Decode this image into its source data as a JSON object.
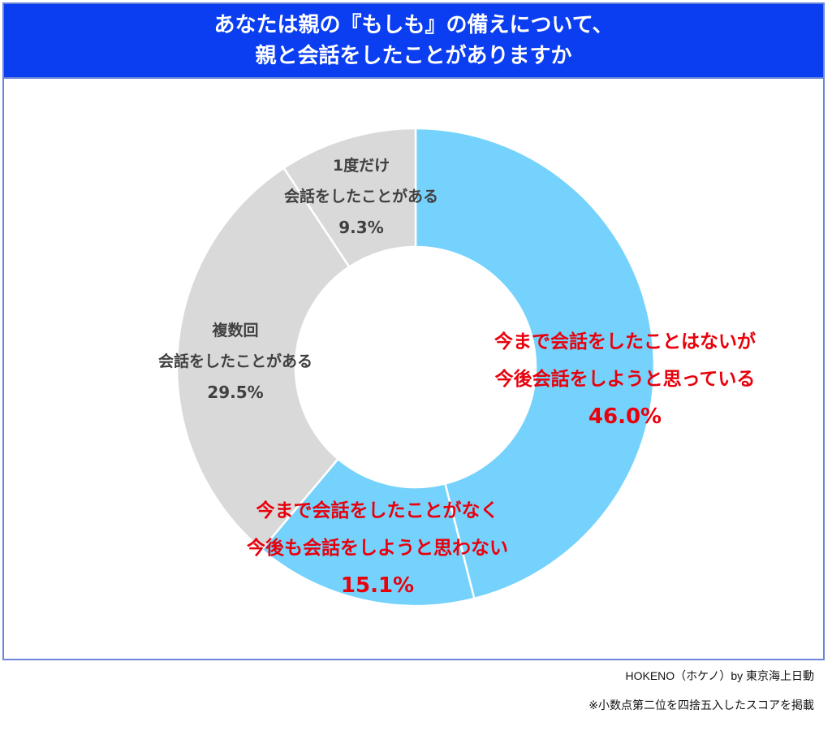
{
  "header": {
    "title_line1": "あなたは親の『もしも』の備えについて、",
    "title_line2": "親と会話をしたことがありますか"
  },
  "labels": {
    "plan_to": {
      "line1": "今まで会話をしたことはないが",
      "line2": "今後会話をしようと思っている",
      "pct": "46.0%"
    },
    "no_plan": {
      "line1": "今まで会話をしたことがなく",
      "line2": "今後も会話をしようと思わない",
      "pct": "15.1%"
    },
    "multiple": {
      "line1": "複数回",
      "line2": "会話をしたことがある",
      "pct": "29.5%"
    },
    "once": {
      "line1": "1度だけ",
      "line2": "会話をしたことがある",
      "pct": "9.3%"
    }
  },
  "footer": {
    "source": "HOKENO（ホケノ）by 東京海上日動",
    "note": "※小数点第二位を四捨五入したスコアを掲載"
  },
  "colors": {
    "title_bg": "#0a3ef0",
    "blue_segment": "#75d2fc",
    "gray_segment": "#d9d9d9",
    "red_text": "#e8000b",
    "gray_text": "#404040"
  },
  "chart_data": {
    "type": "pie",
    "variant": "donut",
    "title": "あなたは親の『もしも』の備えについて、親と会話をしたことがありますか",
    "start_angle": "12 o'clock",
    "direction": "clockwise",
    "categories": [
      "今まで会話をしたことはないが今後会話をしようと思っている",
      "今まで会話をしたことがなく今後も会話をしようと思わない",
      "複数回会話をしたことがある",
      "1度だけ会話をしたことがある"
    ],
    "values": [
      46.0,
      15.1,
      29.5,
      9.3
    ],
    "unit": "%",
    "segment_colors": [
      "#75d2fc",
      "#75d2fc",
      "#d9d9d9",
      "#d9d9d9"
    ],
    "annotations": [
      "※小数点第二位を四捨五入したスコアを掲載",
      "HOKENO（ホケノ）by 東京海上日動"
    ],
    "legend": "none (direct labels)"
  }
}
